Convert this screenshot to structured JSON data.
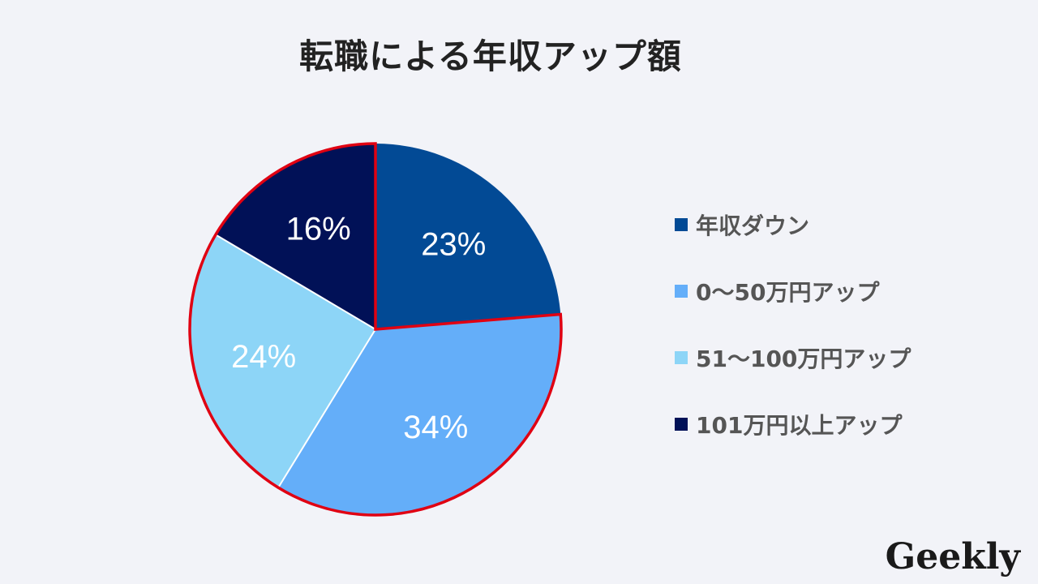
{
  "chart_data": {
    "type": "pie",
    "title": "転職による年収アップ額",
    "categories": [
      "年収ダウン",
      "0～50万円アップ",
      "51～100万円アップ",
      "101万円以上アップ"
    ],
    "values": [
      23,
      34,
      24,
      16
    ],
    "labels": [
      "23%",
      "34%",
      "24%",
      "16%"
    ],
    "colors": [
      "#024a95",
      "#64aef9",
      "#8dd5f7",
      "#011157"
    ],
    "highlight_color": "#e00012",
    "legend_position": "right"
  },
  "brand": {
    "logo_text": "Geekly"
  }
}
